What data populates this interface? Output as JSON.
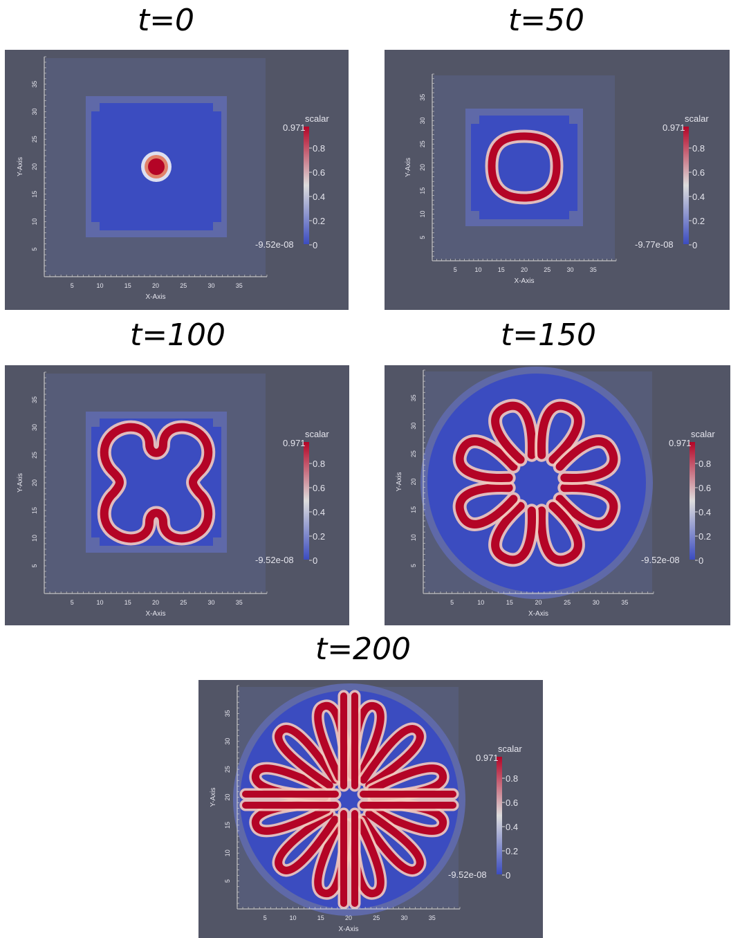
{
  "panels": [
    {
      "title": "t=0",
      "scalar_label": "scalar",
      "max_label": "0.971",
      "min_label": "-9.52e-08",
      "ticks": [
        "0.8",
        "0.6",
        "0.4",
        "0.2",
        "0"
      ],
      "x_axis_label": "X-Axis",
      "y_axis_label": "Y-Axis",
      "x_ticks": [
        "5",
        "10",
        "15",
        "20",
        "25",
        "30",
        "35"
      ],
      "y_ticks": [
        "5",
        "10",
        "15",
        "20",
        "25",
        "30",
        "35"
      ],
      "pattern": "spot"
    },
    {
      "title": "t=50",
      "scalar_label": "scalar",
      "max_label": "0.971",
      "min_label": "-9.77e-08",
      "ticks": [
        "0.8",
        "0.6",
        "0.4",
        "0.2",
        "0"
      ],
      "x_axis_label": "X-Axis",
      "y_axis_label": "Y-Axis",
      "x_ticks": [
        "5",
        "10",
        "15",
        "20",
        "25",
        "30",
        "35"
      ],
      "y_ticks": [
        "5",
        "10",
        "15",
        "20",
        "25",
        "30",
        "35"
      ],
      "pattern": "ring"
    },
    {
      "title": "t=100",
      "scalar_label": "scalar",
      "max_label": "0.971",
      "min_label": "-9.52e-08",
      "ticks": [
        "0.8",
        "0.6",
        "0.4",
        "0.2",
        "0"
      ],
      "x_axis_label": "X-Axis",
      "y_axis_label": "Y-Axis",
      "x_ticks": [
        "5",
        "10",
        "15",
        "20",
        "25",
        "30",
        "35"
      ],
      "y_ticks": [
        "5",
        "10",
        "15",
        "20",
        "25",
        "30",
        "35"
      ],
      "pattern": "cross"
    },
    {
      "title": "t=150",
      "scalar_label": "scalar",
      "max_label": "0.971",
      "min_label": "-9.52e-08",
      "ticks": [
        "0.8",
        "0.6",
        "0.4",
        "0.2",
        "0"
      ],
      "x_axis_label": "X-Axis",
      "y_axis_label": "Y-Axis",
      "x_ticks": [
        "5",
        "10",
        "15",
        "20",
        "25",
        "30",
        "35"
      ],
      "y_ticks": [
        "5",
        "10",
        "15",
        "20",
        "25",
        "30",
        "35"
      ],
      "pattern": "flower"
    },
    {
      "title": "t=200",
      "scalar_label": "scalar",
      "max_label": "0.971",
      "min_label": "-9.52e-08",
      "ticks": [
        "0.8",
        "0.6",
        "0.4",
        "0.2",
        "0"
      ],
      "x_axis_label": "X-Axis",
      "y_axis_label": "Y-Axis",
      "x_ticks": [
        "5",
        "10",
        "15",
        "20",
        "25",
        "30",
        "35"
      ],
      "y_ticks": [
        "5",
        "10",
        "15",
        "20",
        "25",
        "30",
        "35"
      ],
      "pattern": "maze"
    }
  ],
  "colors": {
    "background": "#525566",
    "domain_outer": "#5f69a8",
    "domain_inner": "#3b4cc0",
    "pattern": "#b40426",
    "colormap_top": "#b40426",
    "colormap_mid": "#dddddd",
    "colormap_bottom": "#3b4cc0"
  }
}
